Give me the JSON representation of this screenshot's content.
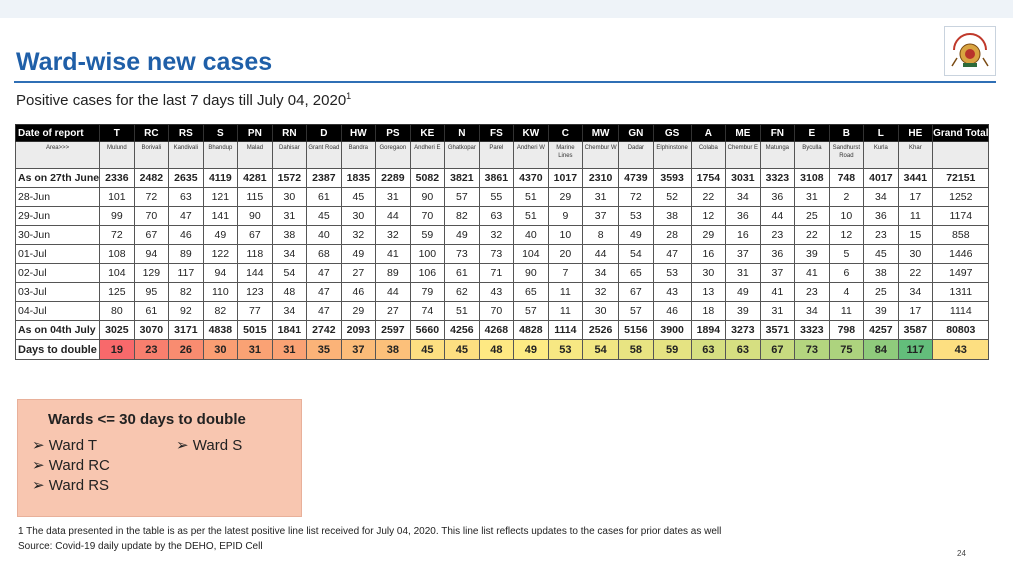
{
  "slide": {
    "title": "Ward-wise new cases",
    "subtitle": "Positive cases for the last 7 days till July 04, 2020",
    "subtitle_sup": "1",
    "page_number": "24"
  },
  "table": {
    "header_label": "Date of report",
    "area_label": "Area>>>",
    "wards": [
      "T",
      "RC",
      "RS",
      "S",
      "PN",
      "RN",
      "D",
      "HW",
      "PS",
      "KE",
      "N",
      "FS",
      "KW",
      "C",
      "MW",
      "GN",
      "GS",
      "A",
      "ME",
      "FN",
      "E",
      "B",
      "L",
      "HE"
    ],
    "grand_total_label": "Grand Total",
    "areas": [
      "Mulund",
      "Borivali",
      "Kandivali",
      "Bhandup",
      "Malad",
      "Dahisar",
      "Grant Road",
      "Bandra",
      "Goregaon",
      "Andheri E",
      "Ghatkopar",
      "Parel",
      "Andheri W",
      "Marine Lines",
      "Chembur W",
      "Dadar",
      "Elphinstone",
      "Colaba",
      "Chembur E",
      "Matunga",
      "Byculla",
      "Sandhurst Road",
      "Kurla",
      "Khar"
    ],
    "rows": [
      {
        "label": "As on 27th June",
        "values": [
          "2336",
          "2482",
          "2635",
          "4119",
          "4281",
          "1572",
          "2387",
          "1835",
          "2289",
          "5082",
          "3821",
          "3861",
          "4370",
          "1017",
          "2310",
          "4739",
          "3593",
          "1754",
          "3031",
          "3323",
          "3108",
          "748",
          "4017",
          "3441",
          "72151"
        ]
      },
      {
        "label": "28-Jun",
        "values": [
          "101",
          "72",
          "63",
          "121",
          "115",
          "30",
          "61",
          "45",
          "31",
          "90",
          "57",
          "55",
          "51",
          "29",
          "31",
          "72",
          "52",
          "22",
          "34",
          "36",
          "31",
          "2",
          "34",
          "17",
          "1252"
        ]
      },
      {
        "label": "29-Jun",
        "values": [
          "99",
          "70",
          "47",
          "141",
          "90",
          "31",
          "45",
          "30",
          "44",
          "70",
          "82",
          "63",
          "51",
          "9",
          "37",
          "53",
          "38",
          "12",
          "36",
          "44",
          "25",
          "10",
          "36",
          "11",
          "1174"
        ]
      },
      {
        "label": "30-Jun",
        "values": [
          "72",
          "67",
          "46",
          "49",
          "67",
          "38",
          "40",
          "32",
          "32",
          "59",
          "49",
          "32",
          "40",
          "10",
          "8",
          "49",
          "28",
          "29",
          "16",
          "23",
          "22",
          "12",
          "23",
          "15",
          "858"
        ]
      },
      {
        "label": "01-Jul",
        "values": [
          "108",
          "94",
          "89",
          "122",
          "118",
          "34",
          "68",
          "49",
          "41",
          "100",
          "73",
          "73",
          "104",
          "20",
          "44",
          "54",
          "47",
          "16",
          "37",
          "36",
          "39",
          "5",
          "45",
          "30",
          "1446"
        ]
      },
      {
        "label": "02-Jul",
        "values": [
          "104",
          "129",
          "117",
          "94",
          "144",
          "54",
          "47",
          "27",
          "89",
          "106",
          "61",
          "71",
          "90",
          "7",
          "34",
          "65",
          "53",
          "30",
          "31",
          "37",
          "41",
          "6",
          "38",
          "22",
          "1497"
        ]
      },
      {
        "label": "03-Jul",
        "values": [
          "125",
          "95",
          "82",
          "110",
          "123",
          "48",
          "47",
          "46",
          "44",
          "79",
          "62",
          "43",
          "65",
          "11",
          "32",
          "67",
          "43",
          "13",
          "49",
          "41",
          "23",
          "4",
          "25",
          "34",
          "1311"
        ]
      },
      {
        "label": "04-Jul",
        "values": [
          "80",
          "61",
          "92",
          "82",
          "77",
          "34",
          "47",
          "29",
          "27",
          "74",
          "51",
          "70",
          "57",
          "11",
          "30",
          "57",
          "46",
          "18",
          "39",
          "31",
          "34",
          "11",
          "39",
          "17",
          "1114"
        ]
      },
      {
        "label": "As on 04th July",
        "values": [
          "3025",
          "3070",
          "3171",
          "4838",
          "5015",
          "1841",
          "2742",
          "2093",
          "2597",
          "5660",
          "4256",
          "4268",
          "4828",
          "1114",
          "2526",
          "5156",
          "3900",
          "1894",
          "3273",
          "3571",
          "3323",
          "798",
          "4257",
          "3587",
          "80803"
        ]
      }
    ],
    "days_label": "Days to double",
    "days": [
      "19",
      "23",
      "26",
      "30",
      "31",
      "31",
      "35",
      "37",
      "38",
      "45",
      "45",
      "48",
      "49",
      "53",
      "54",
      "58",
      "59",
      "63",
      "63",
      "67",
      "73",
      "75",
      "84",
      "117",
      "43"
    ],
    "days_colors": [
      "#f8696b",
      "#f87f6e",
      "#f98c70",
      "#fa9e73",
      "#faa274",
      "#faa274",
      "#fbb378",
      "#fbbc79",
      "#fcc07a",
      "#fddf81",
      "#fddf81",
      "#fee983",
      "#feeb84",
      "#f7e883",
      "#f2e783",
      "#e8e482",
      "#e5e382",
      "#d6df81",
      "#d6df81",
      "#c7db80",
      "#b4d57f",
      "#add37e",
      "#8fcb7c",
      "#63be7b",
      "#fddf81"
    ]
  },
  "wards_box": {
    "heading": "Wards <= 30 days to double",
    "items": [
      "Ward T",
      "Ward RC",
      "Ward RS",
      "Ward S"
    ],
    "bullet": "➢"
  },
  "footnotes": {
    "note1": "1 The data presented in the table is as per the latest positive line list received for July 04, 2020. This line list reflects updates to the cases for prior dates as well",
    "source": "Source: Covid-19 daily update by the DEHO, EPID Cell"
  }
}
